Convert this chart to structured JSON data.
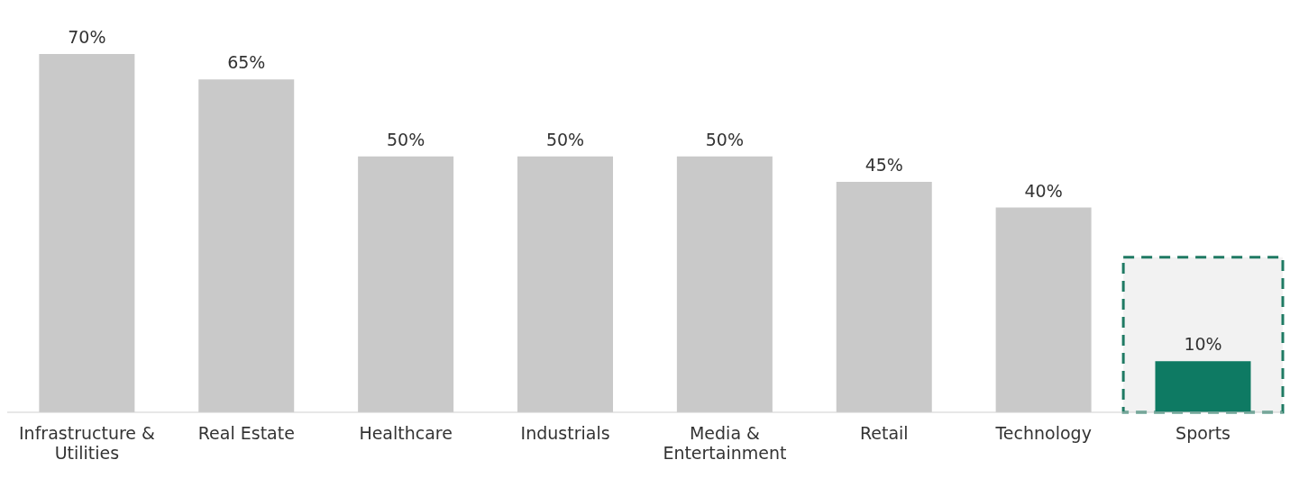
{
  "chart_data": {
    "type": "bar",
    "categories": [
      "Infrastructure & Utilities",
      "Real Estate",
      "Healthcare",
      "Industrials",
      "Media & Entertainment",
      "Retail",
      "Technology",
      "Sports"
    ],
    "values": [
      70,
      65,
      50,
      50,
      50,
      45,
      40,
      10
    ],
    "colors": [
      "#c9c9c9",
      "#c9c9c9",
      "#c9c9c9",
      "#c9c9c9",
      "#c9c9c9",
      "#c9c9c9",
      "#c9c9c9",
      "#0e7a63"
    ],
    "value_labels": [
      "70%",
      "65%",
      "50%",
      "50%",
      "50%",
      "45%",
      "40%",
      "10%"
    ],
    "bands": [
      {
        "axis": "x",
        "from": "Sports",
        "to": "Sports",
        "color": "#f2f2f2"
      }
    ],
    "grid": false,
    "legend": false
  }
}
